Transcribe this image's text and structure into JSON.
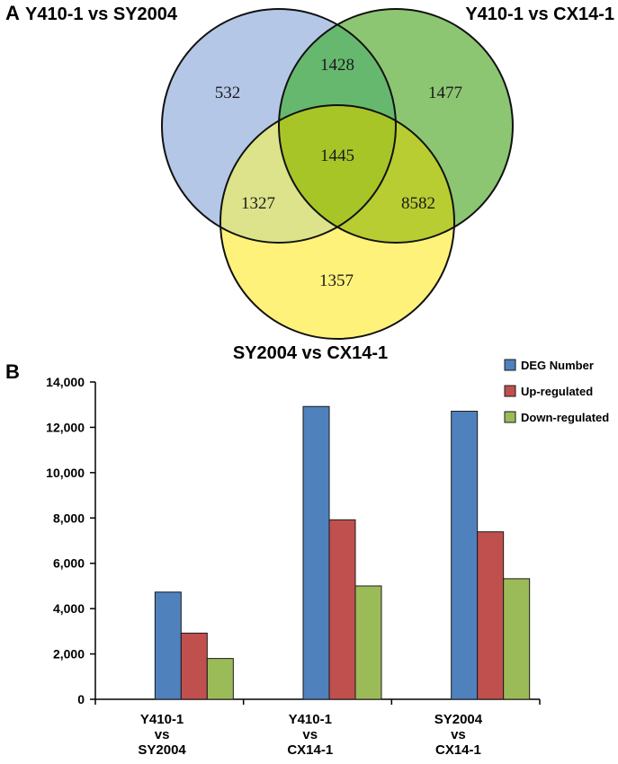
{
  "panels": {
    "a_label": "A",
    "b_label": "B"
  },
  "venn": {
    "sets": [
      {
        "name": "Y410-1 vs SY2004",
        "color": "#b4c7e7"
      },
      {
        "name": "Y410-1 vs CX14-1",
        "color": "#8cc672"
      },
      {
        "name": "SY2004 vs CX14-1",
        "color": "#fff27a"
      }
    ],
    "regions": {
      "only_1": "532",
      "only_2": "1477",
      "only_3": "1357",
      "r12": "1428",
      "r13": "1327",
      "r23": "8582",
      "r123": "1445"
    },
    "overlap_colors": {
      "r12": "#67b86f",
      "r13": "#dde38a",
      "r23": "#b8cd31",
      "r123": "#a8c528"
    }
  },
  "chart_data": {
    "type": "bar",
    "categories": [
      [
        "Y410-1",
        "vs",
        "SY2004"
      ],
      [
        "Y410-1",
        "vs",
        "CX14-1"
      ],
      [
        "SY2004",
        "vs",
        "CX14-1"
      ]
    ],
    "series": [
      {
        "name": "DEG Number",
        "color": "#4f81bd",
        "values": [
          4730,
          12920,
          12710
        ]
      },
      {
        "name": "Up-regulated",
        "color": "#c0504d",
        "values": [
          2920,
          7920,
          7390
        ]
      },
      {
        "name": "Down-regulated",
        "color": "#9bbb59",
        "values": [
          1800,
          5000,
          5320
        ]
      }
    ],
    "ylim": [
      0,
      14000
    ],
    "yticks": [
      "0",
      "2,000",
      "4,000",
      "6,000",
      "8,000",
      "10,000",
      "12,000",
      "14,000"
    ],
    "legend_position": "top-right",
    "grid": false
  }
}
